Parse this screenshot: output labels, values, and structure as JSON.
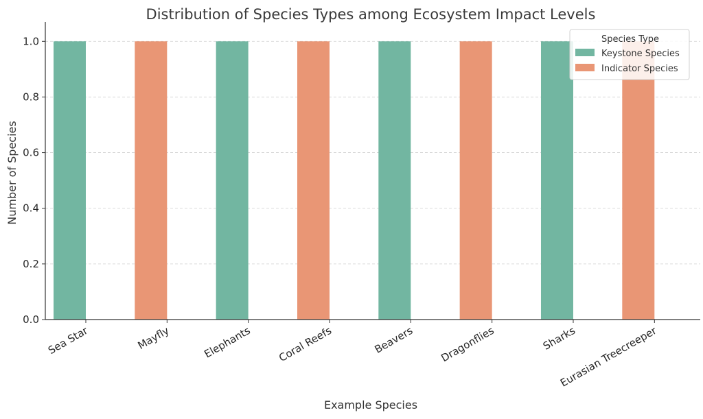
{
  "chart_data": {
    "type": "bar",
    "title": "Distribution of Species Types among Ecosystem Impact Levels",
    "xlabel": "Example Species",
    "ylabel": "Number of Species",
    "categories": [
      "Sea Star",
      "Mayfly",
      "Elephants",
      "Coral Reefs",
      "Beavers",
      "Dragonflies",
      "Sharks",
      "Eurasian Treecreeper"
    ],
    "series": [
      {
        "name": "Keystone Species",
        "color": "#72b6a1",
        "values": [
          1,
          0,
          1,
          0,
          1,
          0,
          1,
          0
        ]
      },
      {
        "name": "Indicator Species",
        "color": "#e99675",
        "values": [
          0,
          1,
          0,
          1,
          0,
          1,
          0,
          1
        ]
      }
    ],
    "ylim": [
      0,
      1.05
    ],
    "yticks": [
      "0.0",
      "0.2",
      "0.4",
      "0.6",
      "0.8",
      "1.0"
    ],
    "grid": "horizontal dashed",
    "legend": {
      "title": "Species Type",
      "placement": "top-right"
    }
  }
}
